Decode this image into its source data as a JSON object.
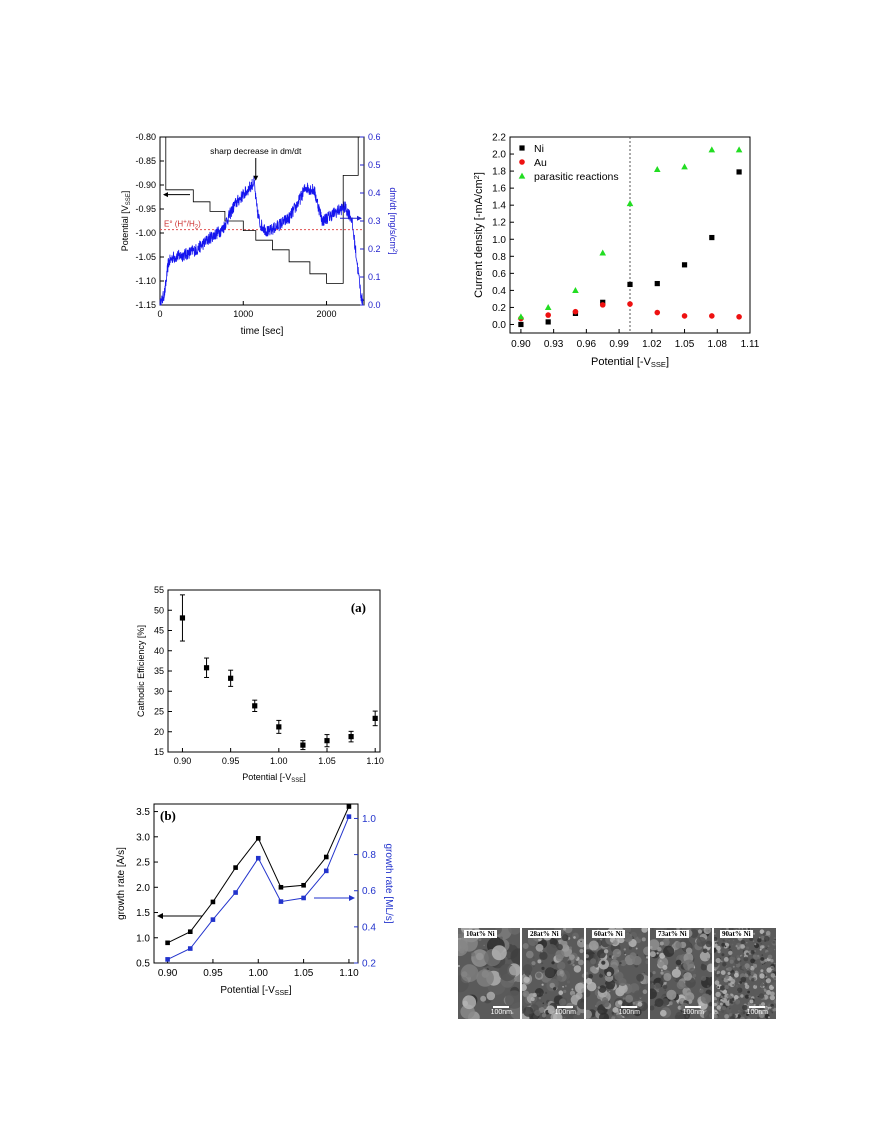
{
  "chart_data": [
    {
      "id": "panel1",
      "type": "line",
      "xlabel": "time [sec]",
      "ylabel_left": "Potential [V",
      "ylabel_left_sub": "SSE",
      "ylabel_left_end": "]",
      "ylabel_right": "dm/dt [mg/s/cm",
      "ylabel_right_sup": "2",
      "ylabel_right_end": "]",
      "xlim": [
        0,
        2450
      ],
      "ylim_left": [
        -1.15,
        -0.8
      ],
      "ylim_right": [
        0,
        0.6
      ],
      "xticks": [
        "0",
        "1000",
        "2000"
      ],
      "yticks_left": [
        "-0.80",
        "-0.85",
        "-0.90",
        "-0.95",
        "-1.00",
        "-1.05",
        "-1.10",
        "-1.15"
      ],
      "yticks_right": [
        "0.6",
        "0.5",
        "0.4",
        "0.3",
        "0.2",
        "0.1",
        "0.0"
      ],
      "annotation": "sharp decrease in dm/dt",
      "reference_label": "E° (H",
      "reference_label_sup": "+",
      "reference_label_mid": "/H",
      "reference_label_sub": "2",
      "reference_label_end": ")",
      "reference_value": -0.993,
      "potential_steps": [
        [
          0,
          -0.8
        ],
        [
          70,
          -0.8
        ],
        [
          70,
          -0.91
        ],
        [
          400,
          -0.91
        ],
        [
          400,
          -0.935
        ],
        [
          600,
          -0.935
        ],
        [
          600,
          -0.955
        ],
        [
          780,
          -0.955
        ],
        [
          780,
          -0.975
        ],
        [
          1000,
          -0.975
        ],
        [
          1000,
          -0.995
        ],
        [
          1150,
          -0.995
        ],
        [
          1150,
          -1.015
        ],
        [
          1350,
          -1.015
        ],
        [
          1350,
          -1.035
        ],
        [
          1550,
          -1.035
        ],
        [
          1550,
          -1.06
        ],
        [
          1800,
          -1.06
        ],
        [
          1800,
          -1.085
        ],
        [
          2000,
          -1.085
        ],
        [
          2000,
          -1.105
        ],
        [
          2200,
          -1.105
        ],
        [
          2200,
          -0.88
        ],
        [
          2380,
          -0.88
        ],
        [
          2380,
          -0.8
        ]
      ],
      "dmdt_trend": [
        [
          0,
          0.0
        ],
        [
          30,
          0.02
        ],
        [
          60,
          0.05
        ],
        [
          100,
          0.15
        ],
        [
          150,
          0.17
        ],
        [
          300,
          0.18
        ],
        [
          450,
          0.2
        ],
        [
          600,
          0.24
        ],
        [
          750,
          0.27
        ],
        [
          900,
          0.36
        ],
        [
          1050,
          0.41
        ],
        [
          1130,
          0.44
        ],
        [
          1160,
          0.35
        ],
        [
          1200,
          0.29
        ],
        [
          1300,
          0.26
        ],
        [
          1400,
          0.28
        ],
        [
          1550,
          0.31
        ],
        [
          1650,
          0.36
        ],
        [
          1750,
          0.42
        ],
        [
          1850,
          0.41
        ],
        [
          1950,
          0.3
        ],
        [
          2100,
          0.33
        ],
        [
          2220,
          0.35
        ],
        [
          2300,
          0.31
        ],
        [
          2360,
          0.17
        ],
        [
          2420,
          0.02
        ]
      ]
    },
    {
      "id": "panel2",
      "type": "scatter",
      "xlabel": "Potential [-V",
      "xlabel_sub": "SSE",
      "xlabel_end": "]",
      "ylabel": "Current density [-mA/cm",
      "ylabel_sup": "2",
      "ylabel_end": "]",
      "xlim": [
        0.89,
        1.11
      ],
      "ylim": [
        -0.1,
        2.2
      ],
      "xticks": [
        "0.90",
        "0.93",
        "0.96",
        "0.99",
        "1.02",
        "1.05",
        "1.08",
        "1.11"
      ],
      "yticks": [
        "0.0",
        "0.2",
        "0.4",
        "0.6",
        "0.8",
        "1.0",
        "1.2",
        "1.4",
        "1.6",
        "1.8",
        "2.0",
        "2.2"
      ],
      "vline": 1.0,
      "legend_position": "top-left",
      "x": [
        0.9,
        0.925,
        0.95,
        0.975,
        1.0,
        1.025,
        1.05,
        1.075,
        1.1
      ],
      "series": [
        {
          "name": "Ni",
          "marker": "square",
          "color": "#000000",
          "values": [
            0.0,
            0.03,
            0.13,
            0.26,
            0.47,
            0.48,
            0.7,
            1.02,
            1.79
          ]
        },
        {
          "name": "Au",
          "marker": "circle",
          "color": "#ee1111",
          "values": [
            0.07,
            0.11,
            0.15,
            0.23,
            0.24,
            0.14,
            0.1,
            0.1,
            0.09
          ]
        },
        {
          "name": "parasitic reactions",
          "marker": "triangle",
          "color": "#22dd22",
          "values": [
            0.09,
            0.2,
            0.4,
            0.84,
            1.42,
            1.82,
            1.85,
            2.05,
            2.05
          ]
        }
      ]
    },
    {
      "id": "panel3",
      "type": "scatter",
      "panel_label": "(a)",
      "xlabel": "Potential [-V",
      "xlabel_sub": "SSE",
      "xlabel_end": "]",
      "ylabel": "Cathodic Efficiency [%]",
      "xlim": [
        0.885,
        1.105
      ],
      "ylim": [
        15,
        55
      ],
      "xticks": [
        "0.90",
        "0.95",
        "1.00",
        "1.05",
        "1.10"
      ],
      "yticks": [
        "55",
        "50",
        "45",
        "40",
        "35",
        "30",
        "25",
        "20",
        "15"
      ],
      "x": [
        0.9,
        0.925,
        0.95,
        0.975,
        1.0,
        1.025,
        1.05,
        1.075,
        1.1
      ],
      "values": [
        48.1,
        35.8,
        33.2,
        26.4,
        21.2,
        16.7,
        17.8,
        18.8,
        23.3
      ],
      "errors": [
        5.7,
        2.4,
        2.0,
        1.4,
        1.6,
        1.1,
        1.5,
        1.3,
        1.8
      ]
    },
    {
      "id": "panel4",
      "type": "line",
      "panel_label": "(b)",
      "xlabel": "Potential [-V",
      "xlabel_sub": "SSE",
      "xlabel_end": "]",
      "ylabel_left": "growth rate [A/s]",
      "ylabel_right": "growth rate [ML/s]",
      "xlim": [
        0.885,
        1.11
      ],
      "ylim_left": [
        0.5,
        3.65
      ],
      "ylim_right": [
        0.2,
        1.08
      ],
      "xticks": [
        "0.90",
        "0.95",
        "1.00",
        "1.05",
        "1.10"
      ],
      "yticks_left": [
        "3.5",
        "3.0",
        "2.5",
        "2.0",
        "1.5",
        "1.0",
        "0.5"
      ],
      "yticks_right": [
        "1.0",
        "0.8",
        "0.6",
        "0.4",
        "0.2"
      ],
      "x": [
        0.9,
        0.925,
        0.95,
        0.975,
        1.0,
        1.025,
        1.05,
        1.075,
        1.1
      ],
      "series": [
        {
          "axis": "left",
          "color": "#000000",
          "values": [
            0.9,
            1.12,
            1.71,
            2.39,
            2.97,
            2.0,
            2.04,
            2.6,
            3.6
          ]
        },
        {
          "axis": "right",
          "color": "#2233cc",
          "values": [
            0.22,
            0.28,
            0.44,
            0.59,
            0.78,
            0.54,
            0.56,
            0.71,
            1.01
          ]
        }
      ]
    }
  ],
  "sem_images": [
    {
      "label": "10at% Ni",
      "scale": "100nm",
      "texture": "coarse"
    },
    {
      "label": "28at% Ni",
      "scale": "100nm",
      "texture": "medium"
    },
    {
      "label": "60at% Ni",
      "scale": "100nm",
      "texture": "medium"
    },
    {
      "label": "73at% Ni",
      "scale": "100nm",
      "texture": "medium"
    },
    {
      "label": "90at% Ni",
      "scale": "100nm",
      "texture": "fine"
    }
  ],
  "colors": {
    "blue_trace": "#1515ee",
    "reference_line": "#e05050",
    "accent_blue": "#2233cc"
  }
}
